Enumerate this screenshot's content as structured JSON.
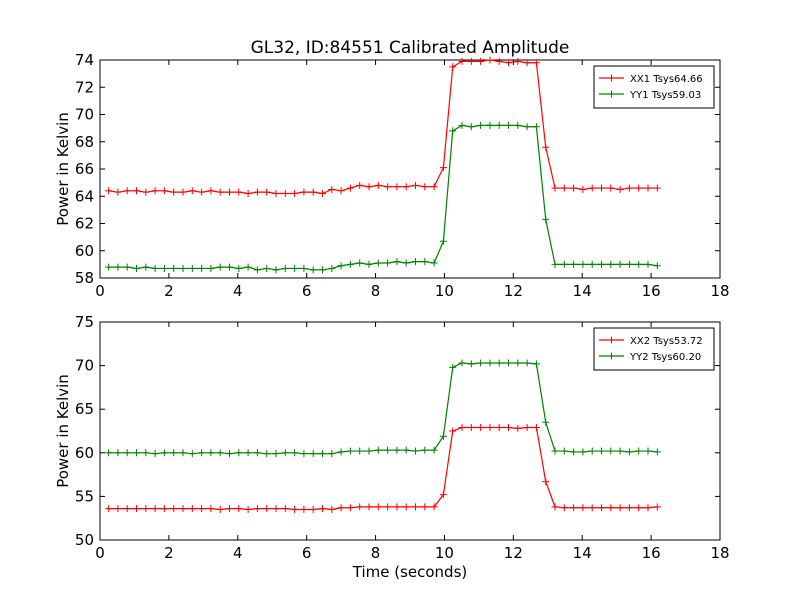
{
  "figure": {
    "title": "GL32, ID:84551 Calibrated Amplitude",
    "xlabel": "Time (seconds)"
  },
  "chart_data": [
    {
      "type": "line",
      "title": "GL32, ID:84551 Calibrated Amplitude",
      "xlabel": "",
      "ylabel": "Power in Kelvin",
      "xlim": [
        0,
        18
      ],
      "ylim": [
        58,
        74
      ],
      "xticks": [
        "0",
        "2",
        "4",
        "6",
        "8",
        "10",
        "12",
        "14",
        "16",
        "18"
      ],
      "yticks": [
        "58",
        "60",
        "62",
        "64",
        "66",
        "68",
        "70",
        "72",
        "74"
      ],
      "grid": false,
      "legend_position": "top-right",
      "x": [
        0.25,
        0.52,
        0.79,
        1.06,
        1.33,
        1.6,
        1.87,
        2.14,
        2.41,
        2.68,
        2.95,
        3.22,
        3.49,
        3.76,
        4.03,
        4.3,
        4.57,
        4.84,
        5.11,
        5.38,
        5.65,
        5.92,
        6.19,
        6.46,
        6.73,
        7.0,
        7.27,
        7.54,
        7.81,
        8.08,
        8.35,
        8.62,
        8.89,
        9.16,
        9.43,
        9.7,
        9.97,
        10.24,
        10.51,
        10.78,
        11.05,
        11.32,
        11.59,
        11.86,
        12.13,
        12.4,
        12.67,
        12.94,
        13.21,
        13.48,
        13.75,
        14.02,
        14.29,
        14.56,
        14.83,
        15.1,
        15.37,
        15.64,
        15.91,
        16.18
      ],
      "series": [
        {
          "name": "XX1 Tsys64.66",
          "color": "#ff0000",
          "values": [
            64.4,
            64.3,
            64.4,
            64.4,
            64.3,
            64.4,
            64.4,
            64.3,
            64.3,
            64.4,
            64.3,
            64.4,
            64.3,
            64.3,
            64.3,
            64.2,
            64.3,
            64.3,
            64.2,
            64.2,
            64.2,
            64.3,
            64.3,
            64.2,
            64.5,
            64.4,
            64.6,
            64.8,
            64.7,
            64.8,
            64.7,
            64.7,
            64.7,
            64.8,
            64.7,
            64.7,
            66.1,
            73.5,
            73.9,
            73.9,
            73.9,
            74.0,
            73.9,
            73.8,
            73.9,
            73.8,
            73.8,
            67.6,
            64.6,
            64.6,
            64.6,
            64.5,
            64.6,
            64.6,
            64.6,
            64.5,
            64.6,
            64.6,
            64.6,
            64.6
          ]
        },
        {
          "name": "YY1 Tsys59.03",
          "color": "#008000",
          "values": [
            58.8,
            58.8,
            58.8,
            58.7,
            58.8,
            58.7,
            58.7,
            58.7,
            58.7,
            58.7,
            58.7,
            58.7,
            58.8,
            58.8,
            58.7,
            58.8,
            58.6,
            58.7,
            58.6,
            58.7,
            58.7,
            58.7,
            58.6,
            58.6,
            58.7,
            58.9,
            59.0,
            59.1,
            59.0,
            59.1,
            59.1,
            59.2,
            59.1,
            59.2,
            59.2,
            59.1,
            60.7,
            68.8,
            69.2,
            69.1,
            69.2,
            69.2,
            69.2,
            69.2,
            69.2,
            69.1,
            69.1,
            62.3,
            59.0,
            59.0,
            59.0,
            59.0,
            59.0,
            59.0,
            59.0,
            59.0,
            59.0,
            59.0,
            59.0,
            58.9
          ]
        }
      ]
    },
    {
      "type": "line",
      "title": "",
      "xlabel": "Time (seconds)",
      "ylabel": "Power in Kelvin",
      "xlim": [
        0,
        18
      ],
      "ylim": [
        50,
        75
      ],
      "xticks": [
        "0",
        "2",
        "4",
        "6",
        "8",
        "10",
        "12",
        "14",
        "16",
        "18"
      ],
      "yticks": [
        "50",
        "55",
        "60",
        "65",
        "70",
        "75"
      ],
      "grid": false,
      "legend_position": "top-right",
      "x": [
        0.25,
        0.52,
        0.79,
        1.06,
        1.33,
        1.6,
        1.87,
        2.14,
        2.41,
        2.68,
        2.95,
        3.22,
        3.49,
        3.76,
        4.03,
        4.3,
        4.57,
        4.84,
        5.11,
        5.38,
        5.65,
        5.92,
        6.19,
        6.46,
        6.73,
        7.0,
        7.27,
        7.54,
        7.81,
        8.08,
        8.35,
        8.62,
        8.89,
        9.16,
        9.43,
        9.7,
        9.97,
        10.24,
        10.51,
        10.78,
        11.05,
        11.32,
        11.59,
        11.86,
        12.13,
        12.4,
        12.67,
        12.94,
        13.21,
        13.48,
        13.75,
        14.02,
        14.29,
        14.56,
        14.83,
        15.1,
        15.37,
        15.64,
        15.91,
        16.18
      ],
      "series": [
        {
          "name": "XX2 Tsys53.72",
          "color": "#ff0000",
          "values": [
            53.6,
            53.6,
            53.6,
            53.6,
            53.6,
            53.6,
            53.6,
            53.6,
            53.6,
            53.6,
            53.6,
            53.6,
            53.5,
            53.6,
            53.6,
            53.5,
            53.6,
            53.6,
            53.6,
            53.6,
            53.5,
            53.5,
            53.5,
            53.6,
            53.5,
            53.7,
            53.7,
            53.8,
            53.8,
            53.8,
            53.8,
            53.8,
            53.8,
            53.8,
            53.8,
            53.8,
            55.2,
            62.5,
            62.9,
            62.9,
            62.9,
            62.9,
            62.9,
            62.9,
            62.8,
            62.9,
            62.9,
            56.7,
            53.8,
            53.7,
            53.7,
            53.7,
            53.7,
            53.7,
            53.7,
            53.7,
            53.7,
            53.7,
            53.7,
            53.8
          ]
        },
        {
          "name": "YY2 Tsys60.20",
          "color": "#008000",
          "values": [
            60.0,
            60.0,
            60.0,
            60.0,
            60.0,
            59.9,
            60.0,
            60.0,
            60.0,
            59.9,
            60.0,
            60.0,
            60.0,
            59.9,
            60.0,
            60.0,
            60.0,
            59.9,
            59.9,
            60.0,
            60.0,
            59.9,
            59.9,
            59.9,
            59.9,
            60.1,
            60.2,
            60.2,
            60.2,
            60.3,
            60.3,
            60.3,
            60.3,
            60.2,
            60.3,
            60.3,
            61.9,
            69.8,
            70.3,
            70.2,
            70.3,
            70.3,
            70.3,
            70.3,
            70.3,
            70.3,
            70.2,
            63.5,
            60.2,
            60.2,
            60.1,
            60.1,
            60.2,
            60.2,
            60.2,
            60.2,
            60.1,
            60.2,
            60.2,
            60.1
          ]
        }
      ]
    }
  ]
}
